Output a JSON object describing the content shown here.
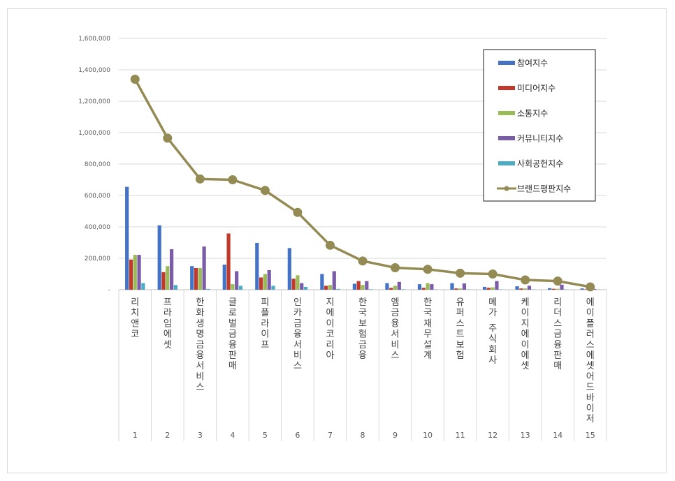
{
  "chart_data": {
    "type": "bar",
    "categories": [
      "리치앤코",
      "프라임에셋",
      "한화생명금융서비스",
      "글로벌금융판매",
      "피플라이프",
      "인카금융서비스",
      "지에이코리아",
      "한국보험금융",
      "엠금융서비스",
      "한국재무설계",
      "유퍼스트보험",
      "메가 주식회사",
      "케이지에이에셋",
      "리더스금융판매",
      "에이플러스에셋어드바이저"
    ],
    "ranks": [
      "1",
      "2",
      "3",
      "4",
      "5",
      "6",
      "7",
      "8",
      "9",
      "10",
      "11",
      "12",
      "13",
      "14",
      "15"
    ],
    "series": [
      {
        "name": "참여지수",
        "type": "bar",
        "color": "#4472c4",
        "values": [
          655000,
          410000,
          150000,
          160000,
          298000,
          265000,
          100000,
          38000,
          42000,
          35000,
          42000,
          18000,
          22000,
          10000,
          8000
        ]
      },
      {
        "name": "미디어지수",
        "type": "bar",
        "color": "#c0392b",
        "values": [
          192000,
          112000,
          138000,
          358000,
          78000,
          70000,
          25000,
          55000,
          12000,
          12000,
          8000,
          12000,
          8000,
          6000,
          3000
        ]
      },
      {
        "name": "소통지수",
        "type": "bar",
        "color": "#9bbb59",
        "values": [
          222000,
          150000,
          138000,
          35000,
          100000,
          92000,
          30000,
          30000,
          25000,
          42000,
          8000,
          15000,
          8000,
          6000,
          3000
        ]
      },
      {
        "name": "커뮤니티지수",
        "type": "bar",
        "color": "#7b5ca8",
        "values": [
          222000,
          258000,
          275000,
          118000,
          125000,
          42000,
          118000,
          55000,
          50000,
          35000,
          40000,
          55000,
          25000,
          32000,
          5000
        ]
      },
      {
        "name": "사회공헌지수",
        "type": "bar",
        "color": "#4bacc6",
        "values": [
          42000,
          30000,
          5000,
          25000,
          25000,
          18000,
          5000,
          3000,
          3000,
          2000,
          2000,
          2000,
          2000,
          2000,
          1000
        ]
      },
      {
        "name": "브랜드평판지수",
        "type": "line",
        "color": "#948a54",
        "values": [
          1340000,
          965000,
          705000,
          700000,
          632000,
          492000,
          283000,
          183000,
          140000,
          130000,
          105000,
          100000,
          62000,
          55000,
          18000
        ]
      }
    ],
    "ylim": [
      0,
      1600000
    ],
    "yticks": [
      "-",
      "200,000",
      "400,000",
      "600,000",
      "800,000",
      "1,000,000",
      "1,200,000",
      "1,400,000",
      "1,600,000"
    ],
    "grid": true,
    "legend": "top-right",
    "title": "",
    "xlabel": "",
    "ylabel": ""
  }
}
